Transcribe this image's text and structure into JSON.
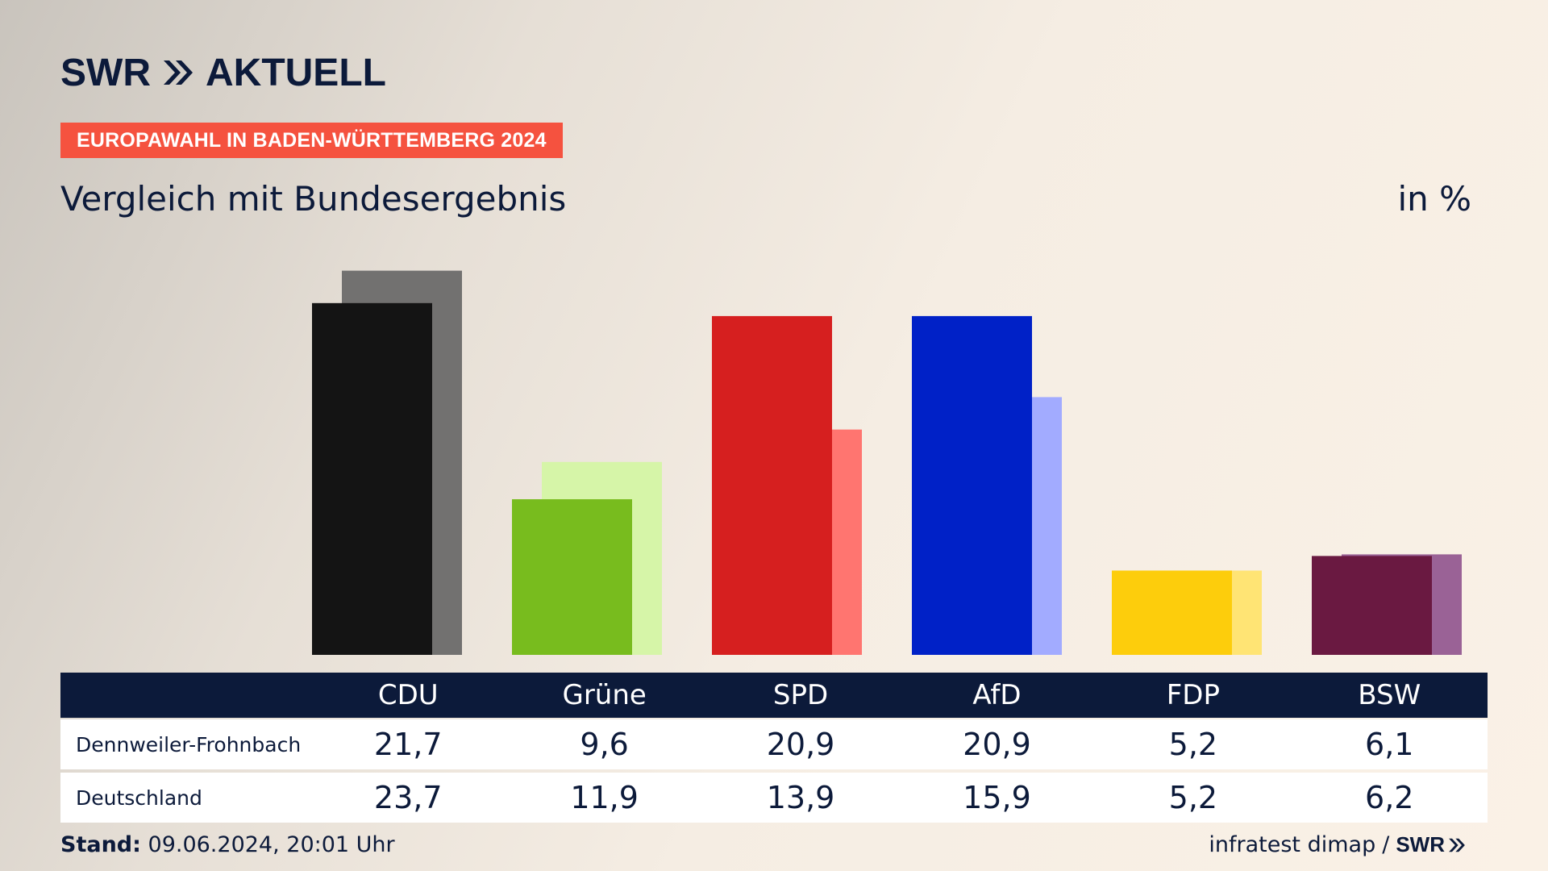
{
  "brand": {
    "logo_left": "SWR",
    "logo_right": "AKTUELL",
    "chevron_icon": "double-chevron-right-icon",
    "navy": "#0c1a3a"
  },
  "header": {
    "tag": "EUROPAWAHL IN BADEN-WÜRTTEMBERG 2024",
    "tag_color": "#f5523f",
    "subtitle": "Vergleich mit Bundesergebnis",
    "unit": "in %"
  },
  "chart_data": {
    "type": "bar",
    "title": "Vergleich mit Bundesergebnis",
    "ylabel": "in %",
    "ylim": [
      0,
      25
    ],
    "categories": [
      "CDU",
      "Grüne",
      "SPD",
      "AfD",
      "FDP",
      "BSW"
    ],
    "series": [
      {
        "name": "Dennweiler-Frohnbach",
        "values": [
          21.7,
          9.6,
          20.9,
          20.9,
          5.2,
          6.1
        ],
        "colors": [
          "#141414",
          "#78bc1e",
          "#d61f1f",
          "#0021c7",
          "#fdcd0c",
          "#6a1941"
        ]
      },
      {
        "name": "Deutschland",
        "values": [
          23.7,
          11.9,
          13.9,
          15.9,
          5.2,
          6.2
        ],
        "colors": [
          "#727170",
          "#d6f5a8",
          "#ff7570",
          "#a2abff",
          "#ffe474",
          "#9a6296"
        ]
      }
    ]
  },
  "table": {
    "headers": [
      "CDU",
      "Grüne",
      "SPD",
      "AfD",
      "FDP",
      "BSW"
    ],
    "rows": [
      {
        "label": "Dennweiler-Frohnbach",
        "values": [
          "21,7",
          "9,6",
          "20,9",
          "20,9",
          "5,2",
          "6,1"
        ]
      },
      {
        "label": "Deutschland",
        "values": [
          "23,7",
          "11,9",
          "13,9",
          "15,9",
          "5,2",
          "6,2"
        ]
      }
    ]
  },
  "footer": {
    "stand_label": "Stand:",
    "stand_value": "09.06.2024, 20:01 Uhr",
    "source": "infratest dimap",
    "separator": "/",
    "source_logo": "SWR"
  }
}
